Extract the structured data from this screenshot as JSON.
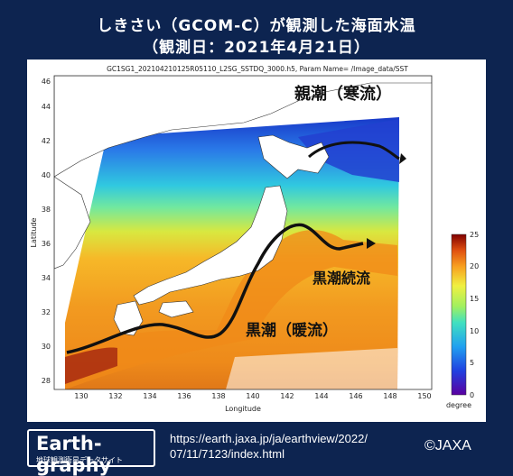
{
  "title_line1": "しきさい（GCOM-C）が観測した海面水温",
  "title_line2": "（観測日：2021年4月21日）",
  "figure": {
    "file_header": "GC1SG1_202104210125R05110_L2SG_SSTDQ_3000.h5, Param Name= /Image_data/SST",
    "x_axis_label": "Longitude",
    "y_axis_label": "Latitude",
    "x_ticks": [
      "130",
      "132",
      "134",
      "136",
      "138",
      "140",
      "142",
      "144",
      "146",
      "148",
      "150"
    ],
    "y_ticks": [
      "28",
      "30",
      "32",
      "34",
      "36",
      "38",
      "40",
      "42",
      "44",
      "46"
    ],
    "colorbar": {
      "ticks": [
        "0",
        "5",
        "10",
        "15",
        "20",
        "25"
      ],
      "unit": "degree"
    }
  },
  "annotations": {
    "oyashio": "親潮（寒流）",
    "kuroshio_extension": "黒潮続流",
    "kuroshio": "黒潮（暖流）"
  },
  "footer": {
    "logo": "Earth-graphy",
    "logo_subtitle": "地球観測衛星データサイト",
    "url_line1": "https://earth.jaxa.jp/ja/earthview/2022/",
    "url_line2": "07/11/7123/index.html",
    "credit": "©JAXA"
  }
}
